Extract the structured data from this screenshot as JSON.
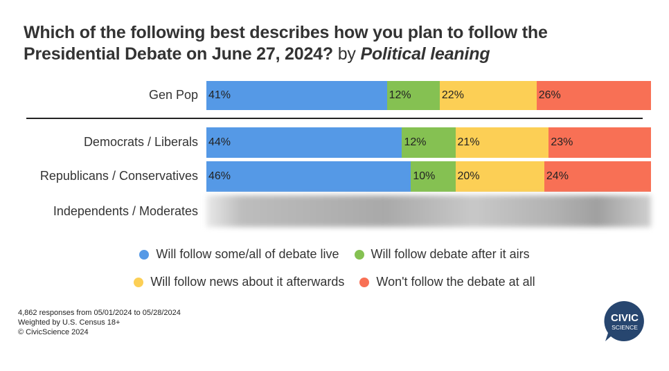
{
  "header": {
    "title_main": "Which of the following best describes how you plan to follow the Presidential Debate on June 27, 2024?",
    "title_by": "by",
    "title_lean": "Political leaning"
  },
  "colors": {
    "live": "#5599e6",
    "after": "#85c152",
    "news": "#fccf55",
    "wont": "#f87055"
  },
  "chart_data": {
    "type": "bar",
    "orientation": "horizontal",
    "stacked": true,
    "percent": true,
    "categories": [
      "Gen Pop",
      "Democrats / Liberals",
      "Republicans / Conservatives",
      "Independents / Moderates"
    ],
    "series": [
      {
        "name": "Will follow some/all of debate live",
        "values": [
          41,
          44,
          46,
          null
        ],
        "labels": [
          "41%",
          "44%",
          "46%",
          ""
        ]
      },
      {
        "name": "Will follow debate after it airs",
        "values": [
          12,
          12,
          10,
          null
        ],
        "labels": [
          "12%",
          "12%",
          "10%",
          ""
        ]
      },
      {
        "name": "Will follow news about it afterwards",
        "values": [
          22,
          21,
          20,
          null
        ],
        "labels": [
          "22%",
          "21%",
          "20%",
          ""
        ]
      },
      {
        "name": "Won't follow the debate at all",
        "values": [
          26,
          23,
          24,
          null
        ],
        "labels": [
          "26%",
          "23%",
          "24%",
          ""
        ]
      }
    ],
    "hidden_rows": [
      "Independents / Moderates"
    ],
    "legend_position": "bottom"
  },
  "footnote": {
    "line1": "4,862 responses from 05/01/2024 to 05/28/2024",
    "line2": "Weighted by U.S. Census 18+",
    "line3": "© CivicScience 2024"
  },
  "logo": {
    "line1": "CIVIC",
    "line2": "SCIENCE",
    "color": "#27466f"
  }
}
